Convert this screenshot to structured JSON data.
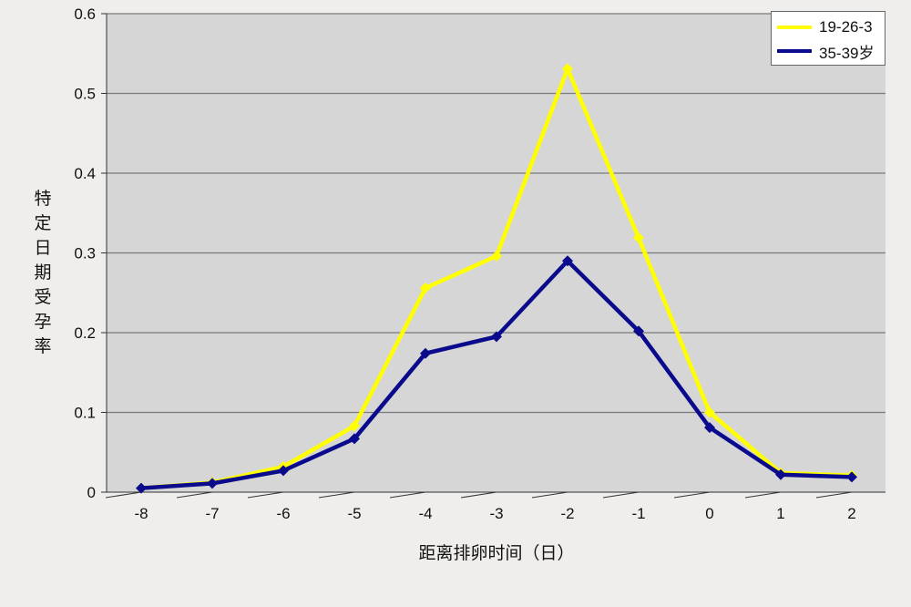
{
  "chart_data": {
    "type": "line",
    "title": "",
    "xlabel": "距离排卵时间（日）",
    "ylabel": "特定日期受孕率",
    "x": [
      -8,
      -7,
      -6,
      -5,
      -4,
      -3,
      -2,
      -1,
      0,
      1,
      2
    ],
    "x_tick_labels": [
      "-8",
      "-7",
      "-6",
      "-5",
      "-4",
      "-3",
      "-2",
      "-1",
      "0",
      "1",
      "2"
    ],
    "ylim": [
      0,
      0.6
    ],
    "y_ticks": [
      0,
      0.1,
      0.2,
      0.3,
      0.4,
      0.5,
      0.6
    ],
    "y_tick_labels": [
      "0",
      "0.1",
      "0.2",
      "0.3",
      "0.4",
      "0.5",
      "0.6"
    ],
    "grid": true,
    "legend_position": "top-right",
    "series": [
      {
        "name": "19-26-3",
        "color": "#ffff00",
        "values": [
          0.005,
          0.012,
          0.032,
          0.083,
          0.256,
          0.296,
          0.531,
          0.319,
          0.1,
          0.024,
          0.021
        ]
      },
      {
        "name": "35-39岁",
        "color": "#0a0a8c",
        "values": [
          0.005,
          0.011,
          0.027,
          0.067,
          0.174,
          0.195,
          0.29,
          0.202,
          0.081,
          0.022,
          0.019
        ]
      }
    ]
  },
  "colors": {
    "plot_background": "#d6d6d6",
    "gridline": "#7a7a7a",
    "page_background": "#efeeec"
  }
}
